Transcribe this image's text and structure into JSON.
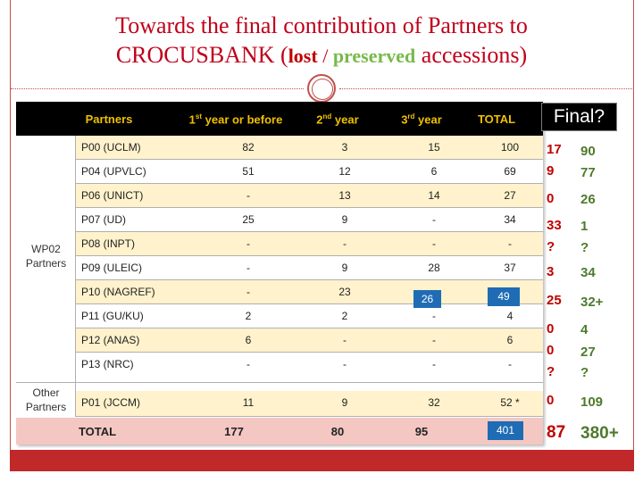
{
  "title": {
    "line1": "Towards the final contribution of Partners to",
    "line2_a": "CROCUSBANK (",
    "lost": "lost",
    "sep": " / ",
    "preserved": "preserved",
    "line2_b": " accessions)"
  },
  "colors": {
    "accent": "#c0504d",
    "lost": "#c00000",
    "preserved": "#77b94a",
    "header_text": "#f0c000",
    "note": "#1f6cb5"
  },
  "table": {
    "headers": {
      "partners": "Partners",
      "y1": "1",
      "y1_sup": "st",
      "y1_rest": " year or before",
      "y2": "2",
      "y2_sup": "nd",
      "y2_rest": " year",
      "y3": "3",
      "y3_sup": "rd",
      "y3_rest": " year",
      "total": "TOTAL"
    },
    "group1": {
      "line1": "WP02",
      "line2": "Partners"
    },
    "group2": {
      "line1": "Other",
      "line2": "Partners"
    },
    "rows": [
      {
        "partner": "P00 (UCLM)",
        "y1": "82",
        "y2": "3",
        "y3": "15",
        "total": "100"
      },
      {
        "partner": "P04 (UPVLC)",
        "y1": "51",
        "y2": "12",
        "y3": "6",
        "total": "69"
      },
      {
        "partner": "P06 (UNICT)",
        "y1": "-",
        "y2": "13",
        "y3": "14",
        "total": "27"
      },
      {
        "partner": "P07 (UD)",
        "y1": "25",
        "y2": "9",
        "y3": "-",
        "total": "34"
      },
      {
        "partner": "P08 (INPT)",
        "y1": "-",
        "y2": "-",
        "y3": "-",
        "total": "-"
      },
      {
        "partner": "P09 (ULEIC)",
        "y1": "-",
        "y2": "9",
        "y3": "28",
        "total": "37"
      },
      {
        "partner": "P10 (NAGREF)",
        "y1": "-",
        "y2": "23",
        "y3": "",
        "total": ""
      },
      {
        "partner": "P11 (GU/KU)",
        "y1": "2",
        "y2": "2",
        "y3": "-",
        "total": "4"
      },
      {
        "partner": "P12 (ANAS)",
        "y1": "6",
        "y2": "-",
        "y3": "-",
        "total": "6"
      },
      {
        "partner": "P13 (NRC)",
        "y1": "-",
        "y2": "-",
        "y3": "-",
        "total": "-"
      },
      {
        "partner": "P01 (JCCM)",
        "y1": "11",
        "y2": "9",
        "y3": "32",
        "total": "52 *"
      }
    ],
    "total_row": {
      "label": "TOTAL",
      "y1": "177",
      "y2": "80",
      "y3": "95",
      "total": ""
    },
    "notes": {
      "p10_y3": "26",
      "p10_total": "49",
      "grand_total": "401"
    }
  },
  "final": {
    "label": "Final?",
    "rows": [
      {
        "lost": "17",
        "preserved": "90"
      },
      {
        "lost": "9",
        "preserved": "77"
      },
      {
        "lost": "0",
        "preserved": "26"
      },
      {
        "lost": "33",
        "preserved": "1"
      },
      {
        "lost": "?",
        "preserved": "?"
      },
      {
        "lost": "3",
        "preserved": "34"
      },
      {
        "lost": "25",
        "preserved": "32+"
      },
      {
        "lost": "0",
        "preserved": "4"
      },
      {
        "lost": "0",
        "preserved": "27"
      },
      {
        "lost": "?",
        "preserved": "?"
      },
      {
        "lost": "0",
        "preserved": "109"
      }
    ],
    "totals": {
      "lost": "87",
      "preserved": "380+"
    }
  }
}
